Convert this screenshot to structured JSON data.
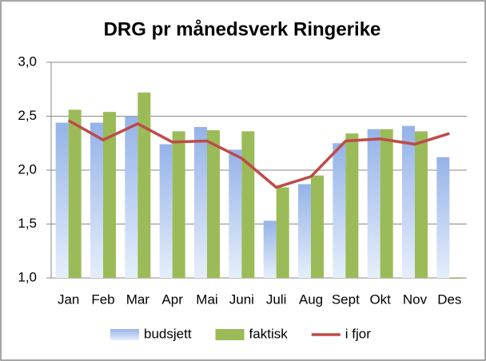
{
  "chart_data": {
    "type": "bar",
    "title": "DRG pr månedsverk Ringerike",
    "categories": [
      "Jan",
      "Feb",
      "Mar",
      "Apr",
      "Mai",
      "Juni",
      "Juli",
      "Aug",
      "Sept",
      "Okt",
      "Nov",
      "Des"
    ],
    "series": [
      {
        "name": "budsjett",
        "type": "bar",
        "color": "#95b3e8",
        "values": [
          2.44,
          2.44,
          2.5,
          2.24,
          2.4,
          2.19,
          1.53,
          1.87,
          2.25,
          2.38,
          2.41,
          2.12
        ]
      },
      {
        "name": "faktisk",
        "type": "bar",
        "color": "#9bbb59",
        "values": [
          2.56,
          2.54,
          2.72,
          2.36,
          2.37,
          2.36,
          1.84,
          1.95,
          2.34,
          2.38,
          2.36,
          1.0
        ]
      },
      {
        "name": "i fjor",
        "type": "line",
        "color": "#be4b48",
        "values": [
          2.46,
          2.28,
          2.43,
          2.26,
          2.27,
          2.11,
          1.84,
          1.94,
          2.27,
          2.29,
          2.24,
          2.34
        ]
      }
    ],
    "ylim": [
      1,
      3
    ],
    "yticks": [
      {
        "value": 1,
        "label": "1,0"
      },
      {
        "value": 1.5,
        "label": "1,5"
      },
      {
        "value": 2,
        "label": "2,0"
      },
      {
        "value": 2.5,
        "label": "2,5"
      },
      {
        "value": 3,
        "label": "3,0"
      }
    ],
    "grid": true,
    "legend": "bottom"
  }
}
